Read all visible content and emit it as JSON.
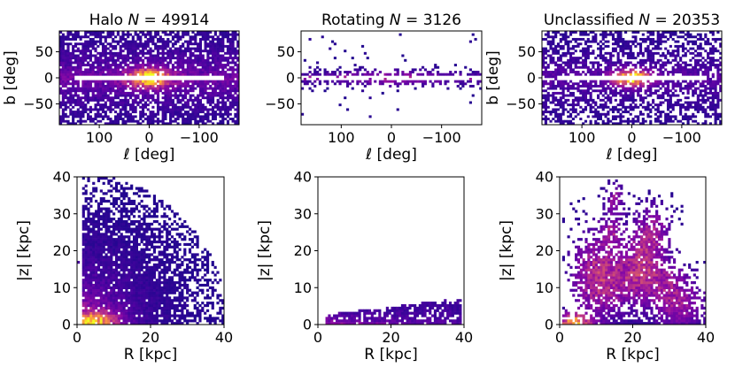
{
  "chart_data": [
    {
      "id": "halo-sky",
      "type": "heatmap",
      "title": "Halo N = 49914",
      "title_prefix": "Halo ",
      "title_var": "N",
      "title_value": " = 49914",
      "xlabel": "ℓ [deg]",
      "ylabel": "b [deg]",
      "xlim": [
        180,
        -180
      ],
      "ylim": [
        -90,
        90
      ],
      "xticks": [
        100,
        0,
        -100
      ],
      "xtick_labels": [
        "100",
        "0",
        "−100"
      ],
      "yticks": [
        50,
        0,
        -50
      ],
      "ytick_labels": [
        "50",
        "0",
        "−50"
      ],
      "colormap": "plasma",
      "distribution": "halo-sky"
    },
    {
      "id": "rotating-sky",
      "type": "heatmap",
      "title": "Rotating N = 3126",
      "title_prefix": "Rotating ",
      "title_var": "N",
      "title_value": " = 3126",
      "xlabel": "ℓ [deg]",
      "ylabel": "",
      "xlim": [
        180,
        -180
      ],
      "ylim": [
        -90,
        90
      ],
      "xticks": [
        100,
        0,
        -100
      ],
      "xtick_labels": [
        "100",
        "0",
        "−100"
      ],
      "yticks": [
        50,
        0,
        -50
      ],
      "ytick_labels": [
        "50",
        "0",
        "−50"
      ],
      "colormap": "plasma",
      "distribution": "disk-sky"
    },
    {
      "id": "unclassified-sky",
      "type": "heatmap",
      "title": "Unclassified N = 20353",
      "title_prefix": "Unclassified ",
      "title_var": "N",
      "title_value": " = 20353",
      "xlabel": "ℓ [deg]",
      "ylabel": "b [deg]",
      "xlim": [
        180,
        -180
      ],
      "ylim": [
        -90,
        90
      ],
      "xticks": [
        100,
        0,
        -100
      ],
      "xtick_labels": [
        "100",
        "0",
        "−100"
      ],
      "yticks": [
        50,
        0,
        -50
      ],
      "ytick_labels": [
        "50",
        "0",
        "−50"
      ],
      "colormap": "plasma",
      "distribution": "unclassified-sky"
    },
    {
      "id": "halo-rz",
      "type": "heatmap",
      "title": "",
      "xlabel": "R [kpc]",
      "ylabel": "|z| [kpc]",
      "xlim": [
        0,
        40
      ],
      "ylim": [
        0,
        40
      ],
      "xticks": [
        0,
        20,
        40
      ],
      "xtick_labels": [
        "0",
        "20",
        "40"
      ],
      "yticks": [
        0,
        10,
        20,
        30,
        40
      ],
      "ytick_labels": [
        "0",
        "10",
        "20",
        "30",
        "40"
      ],
      "colormap": "plasma",
      "distribution": "halo-rz"
    },
    {
      "id": "rotating-rz",
      "type": "heatmap",
      "title": "",
      "xlabel": "R [kpc]",
      "ylabel": "|z| [kpc]",
      "xlim": [
        0,
        40
      ],
      "ylim": [
        0,
        40
      ],
      "xticks": [
        0,
        20,
        40
      ],
      "xtick_labels": [
        "0",
        "20",
        "40"
      ],
      "yticks": [
        0,
        10,
        20,
        30,
        40
      ],
      "ytick_labels": [
        "0",
        "10",
        "20",
        "30",
        "40"
      ],
      "colormap": "plasma",
      "distribution": "disk-rz"
    },
    {
      "id": "unclassified-rz",
      "type": "heatmap",
      "title": "",
      "xlabel": "R [kpc]",
      "ylabel": "|z| [kpc]",
      "xlim": [
        0,
        40
      ],
      "ylim": [
        0,
        40
      ],
      "xticks": [
        0,
        20,
        40
      ],
      "xtick_labels": [
        "0",
        "20",
        "40"
      ],
      "yticks": [
        0,
        10,
        20,
        30,
        40
      ],
      "ytick_labels": [
        "0",
        "10",
        "20",
        "30",
        "40"
      ],
      "colormap": "plasma",
      "distribution": "unclassified-rz"
    }
  ]
}
